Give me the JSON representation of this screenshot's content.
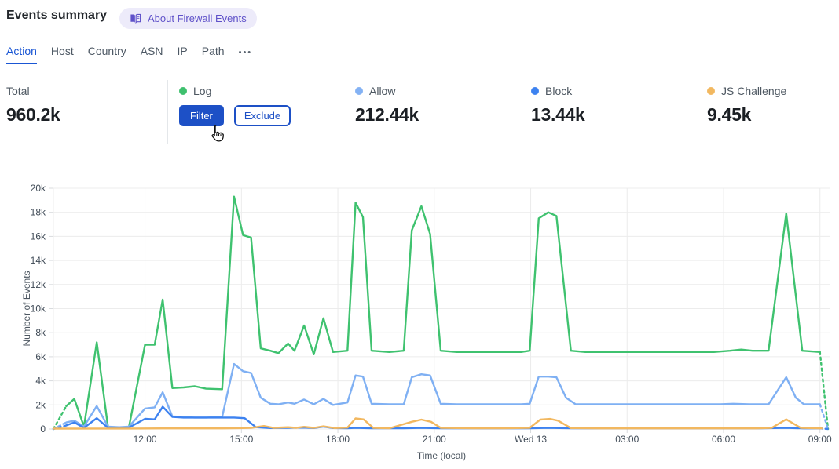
{
  "header": {
    "title": "Events summary",
    "about_badge_label": "About Firewall Events",
    "about_badge_icon": "open-book-icon"
  },
  "tabs": {
    "items": [
      {
        "label": "Action",
        "active": true
      },
      {
        "label": "Host",
        "active": false
      },
      {
        "label": "Country",
        "active": false
      },
      {
        "label": "ASN",
        "active": false
      },
      {
        "label": "IP",
        "active": false
      },
      {
        "label": "Path",
        "active": false
      }
    ],
    "more_label": "•••",
    "more_icon": "ellipsis-icon"
  },
  "stats": {
    "total": {
      "label": "Total",
      "value": "960.2k"
    },
    "cards": [
      {
        "label": "Log",
        "color": "#3ec06e",
        "value": "",
        "hover_actions": true
      },
      {
        "label": "Allow",
        "color": "#84b2f4",
        "value": "212.44k"
      },
      {
        "label": "Block",
        "color": "#3d82f0",
        "value": "13.44k"
      },
      {
        "label": "JS Challenge",
        "color": "#f2b860",
        "value": "9.45k"
      }
    ],
    "log_actions": {
      "filter_label": "Filter",
      "exclude_label": "Exclude"
    },
    "cursor_icon": "hand-cursor-icon"
  },
  "colors": {
    "primary_blue": "#1d50c6",
    "tab_active_blue": "#1a56d4",
    "badge_bg": "#edebfa",
    "badge_text": "#5f51c9",
    "gridline": "#ececec"
  },
  "chart_data": {
    "type": "line",
    "title": "",
    "xlabel": "Time (local)",
    "ylabel": "Number of Events",
    "values_in": "thousands of events (k)",
    "x_units": "hours local time; 24 = Wed 13 midnight; range ≈ Tue 09:10 → Wed 09:00",
    "x_domain": [
      9.15,
      33.3
    ],
    "ylim_k": [
      0,
      20
    ],
    "grid": true,
    "legend_position": "stat-cards-above",
    "yticks": [
      {
        "v": 0,
        "label": "0"
      },
      {
        "v": 2,
        "label": "2k"
      },
      {
        "v": 4,
        "label": "4k"
      },
      {
        "v": 6,
        "label": "6k"
      },
      {
        "v": 8,
        "label": "8k"
      },
      {
        "v": 10,
        "label": "10k"
      },
      {
        "v": 12,
        "label": "12k"
      },
      {
        "v": 14,
        "label": "14k"
      },
      {
        "v": 16,
        "label": "16k"
      },
      {
        "v": 18,
        "label": "18k"
      },
      {
        "v": 20,
        "label": "20k"
      }
    ],
    "xticks": [
      {
        "t": 12,
        "label": "12:00"
      },
      {
        "t": 15,
        "label": "15:00"
      },
      {
        "t": 18,
        "label": "18:00"
      },
      {
        "t": 21,
        "label": "21:00"
      },
      {
        "t": 24,
        "label": "Wed 13"
      },
      {
        "t": 27,
        "label": "03:00"
      },
      {
        "t": 30,
        "label": "06:00"
      },
      {
        "t": 33,
        "label": "09:00"
      }
    ],
    "series": [
      {
        "name": "Log",
        "color": "#3fc26f",
        "dash_start": true,
        "dash_end": true,
        "points": [
          [
            9.15,
            0
          ],
          [
            9.55,
            1.9
          ],
          [
            9.8,
            2.5
          ],
          [
            10.1,
            0.2
          ],
          [
            10.5,
            7.2
          ],
          [
            10.85,
            0.15
          ],
          [
            11.2,
            0.1
          ],
          [
            11.5,
            0.15
          ],
          [
            12.0,
            7.0
          ],
          [
            12.3,
            7.0
          ],
          [
            12.55,
            10.75
          ],
          [
            12.85,
            3.4
          ],
          [
            13.2,
            3.45
          ],
          [
            13.55,
            3.55
          ],
          [
            13.9,
            3.35
          ],
          [
            14.4,
            3.3
          ],
          [
            14.77,
            19.3
          ],
          [
            15.05,
            16.1
          ],
          [
            15.3,
            15.9
          ],
          [
            15.6,
            6.7
          ],
          [
            15.9,
            6.5
          ],
          [
            16.15,
            6.3
          ],
          [
            16.45,
            7.1
          ],
          [
            16.65,
            6.5
          ],
          [
            16.95,
            8.6
          ],
          [
            17.25,
            6.2
          ],
          [
            17.55,
            9.2
          ],
          [
            17.85,
            6.4
          ],
          [
            18.3,
            6.5
          ],
          [
            18.55,
            18.8
          ],
          [
            18.78,
            17.6
          ],
          [
            19.05,
            6.5
          ],
          [
            19.6,
            6.4
          ],
          [
            20.05,
            6.5
          ],
          [
            20.3,
            16.5
          ],
          [
            20.6,
            18.5
          ],
          [
            20.87,
            16.2
          ],
          [
            21.2,
            6.5
          ],
          [
            21.7,
            6.4
          ],
          [
            22.2,
            6.4
          ],
          [
            22.7,
            6.4
          ],
          [
            23.2,
            6.4
          ],
          [
            23.7,
            6.4
          ],
          [
            23.97,
            6.5
          ],
          [
            24.25,
            17.5
          ],
          [
            24.55,
            18.0
          ],
          [
            24.8,
            17.7
          ],
          [
            25.25,
            6.5
          ],
          [
            25.7,
            6.4
          ],
          [
            26.2,
            6.4
          ],
          [
            26.7,
            6.4
          ],
          [
            27.2,
            6.4
          ],
          [
            27.7,
            6.4
          ],
          [
            28.2,
            6.4
          ],
          [
            28.7,
            6.4
          ],
          [
            29.2,
            6.4
          ],
          [
            29.7,
            6.4
          ],
          [
            30.2,
            6.5
          ],
          [
            30.55,
            6.6
          ],
          [
            30.9,
            6.5
          ],
          [
            31.4,
            6.5
          ],
          [
            31.95,
            17.9
          ],
          [
            32.45,
            6.5
          ],
          [
            33.0,
            6.4
          ],
          [
            33.25,
            0
          ]
        ]
      },
      {
        "name": "Allow",
        "color": "#7fb0f3",
        "dash_start": true,
        "dash_end": true,
        "points": [
          [
            9.15,
            0
          ],
          [
            9.55,
            0.55
          ],
          [
            9.8,
            0.7
          ],
          [
            10.1,
            0.2
          ],
          [
            10.5,
            1.9
          ],
          [
            10.85,
            0.2
          ],
          [
            11.2,
            0.15
          ],
          [
            11.5,
            0.2
          ],
          [
            12.0,
            1.7
          ],
          [
            12.3,
            1.8
          ],
          [
            12.55,
            3.05
          ],
          [
            12.85,
            1.05
          ],
          [
            13.2,
            1.0
          ],
          [
            13.55,
            0.95
          ],
          [
            13.9,
            0.95
          ],
          [
            14.4,
            1.0
          ],
          [
            14.77,
            5.4
          ],
          [
            15.05,
            4.8
          ],
          [
            15.3,
            4.65
          ],
          [
            15.6,
            2.6
          ],
          [
            15.9,
            2.1
          ],
          [
            16.15,
            2.05
          ],
          [
            16.45,
            2.2
          ],
          [
            16.65,
            2.1
          ],
          [
            16.95,
            2.45
          ],
          [
            17.25,
            2.05
          ],
          [
            17.55,
            2.5
          ],
          [
            17.85,
            2.0
          ],
          [
            18.3,
            2.2
          ],
          [
            18.55,
            4.45
          ],
          [
            18.78,
            4.35
          ],
          [
            19.05,
            2.1
          ],
          [
            19.6,
            2.05
          ],
          [
            20.05,
            2.05
          ],
          [
            20.3,
            4.3
          ],
          [
            20.6,
            4.55
          ],
          [
            20.87,
            4.45
          ],
          [
            21.2,
            2.1
          ],
          [
            21.7,
            2.05
          ],
          [
            22.2,
            2.05
          ],
          [
            22.7,
            2.05
          ],
          [
            23.2,
            2.05
          ],
          [
            23.7,
            2.05
          ],
          [
            23.97,
            2.1
          ],
          [
            24.25,
            4.35
          ],
          [
            24.55,
            4.35
          ],
          [
            24.8,
            4.3
          ],
          [
            25.1,
            2.6
          ],
          [
            25.4,
            2.05
          ],
          [
            25.9,
            2.05
          ],
          [
            26.4,
            2.05
          ],
          [
            26.9,
            2.05
          ],
          [
            27.4,
            2.05
          ],
          [
            27.9,
            2.05
          ],
          [
            28.4,
            2.05
          ],
          [
            28.9,
            2.05
          ],
          [
            29.4,
            2.05
          ],
          [
            29.9,
            2.05
          ],
          [
            30.3,
            2.1
          ],
          [
            30.8,
            2.05
          ],
          [
            31.4,
            2.05
          ],
          [
            31.95,
            4.3
          ],
          [
            32.25,
            2.6
          ],
          [
            32.5,
            2.05
          ],
          [
            33.0,
            2.05
          ],
          [
            33.25,
            0
          ]
        ]
      },
      {
        "name": "Block",
        "color": "#3d82f0",
        "dash_start": true,
        "dash_end": true,
        "points": [
          [
            9.15,
            0
          ],
          [
            9.55,
            0.3
          ],
          [
            9.8,
            0.55
          ],
          [
            10.1,
            0.1
          ],
          [
            10.5,
            0.9
          ],
          [
            10.85,
            0.1
          ],
          [
            11.2,
            0.08
          ],
          [
            11.5,
            0.12
          ],
          [
            12.0,
            0.85
          ],
          [
            12.3,
            0.8
          ],
          [
            12.55,
            1.85
          ],
          [
            12.85,
            1.0
          ],
          [
            13.2,
            0.95
          ],
          [
            13.55,
            0.95
          ],
          [
            13.9,
            0.95
          ],
          [
            14.4,
            0.95
          ],
          [
            14.77,
            0.95
          ],
          [
            15.1,
            0.9
          ],
          [
            15.45,
            0.15
          ],
          [
            15.9,
            0.08
          ],
          [
            16.45,
            0.1
          ],
          [
            16.95,
            0.12
          ],
          [
            17.25,
            0.08
          ],
          [
            17.55,
            0.2
          ],
          [
            17.85,
            0.08
          ],
          [
            18.3,
            0.06
          ],
          [
            18.55,
            0.1
          ],
          [
            19.05,
            0.06
          ],
          [
            20.05,
            0.06
          ],
          [
            20.6,
            0.1
          ],
          [
            21.2,
            0.06
          ],
          [
            22.5,
            0.05
          ],
          [
            23.97,
            0.06
          ],
          [
            24.55,
            0.1
          ],
          [
            25.25,
            0.06
          ],
          [
            27.0,
            0.05
          ],
          [
            29.0,
            0.05
          ],
          [
            31.0,
            0.05
          ],
          [
            31.95,
            0.1
          ],
          [
            32.5,
            0.05
          ],
          [
            33.0,
            0.05
          ],
          [
            33.25,
            0
          ]
        ]
      },
      {
        "name": "JS Challenge",
        "color": "#f2b860",
        "dash_start": false,
        "dash_end": false,
        "points": [
          [
            9.15,
            0.03
          ],
          [
            10.5,
            0.04
          ],
          [
            11.5,
            0.04
          ],
          [
            12.55,
            0.05
          ],
          [
            13.5,
            0.05
          ],
          [
            14.4,
            0.05
          ],
          [
            14.9,
            0.07
          ],
          [
            15.3,
            0.1
          ],
          [
            15.7,
            0.25
          ],
          [
            16.0,
            0.1
          ],
          [
            16.45,
            0.15
          ],
          [
            16.7,
            0.1
          ],
          [
            16.95,
            0.18
          ],
          [
            17.25,
            0.1
          ],
          [
            17.55,
            0.22
          ],
          [
            17.9,
            0.08
          ],
          [
            18.3,
            0.12
          ],
          [
            18.55,
            0.88
          ],
          [
            18.8,
            0.8
          ],
          [
            19.1,
            0.1
          ],
          [
            19.6,
            0.06
          ],
          [
            20.3,
            0.6
          ],
          [
            20.6,
            0.78
          ],
          [
            20.9,
            0.6
          ],
          [
            21.2,
            0.1
          ],
          [
            22.2,
            0.06
          ],
          [
            23.2,
            0.06
          ],
          [
            23.97,
            0.1
          ],
          [
            24.3,
            0.78
          ],
          [
            24.6,
            0.84
          ],
          [
            24.85,
            0.7
          ],
          [
            25.25,
            0.08
          ],
          [
            26.2,
            0.05
          ],
          [
            27.2,
            0.05
          ],
          [
            28.2,
            0.05
          ],
          [
            29.2,
            0.05
          ],
          [
            30.2,
            0.05
          ],
          [
            31.0,
            0.05
          ],
          [
            31.5,
            0.1
          ],
          [
            31.95,
            0.8
          ],
          [
            32.4,
            0.1
          ],
          [
            33.05,
            0.05
          ]
        ]
      }
    ]
  }
}
